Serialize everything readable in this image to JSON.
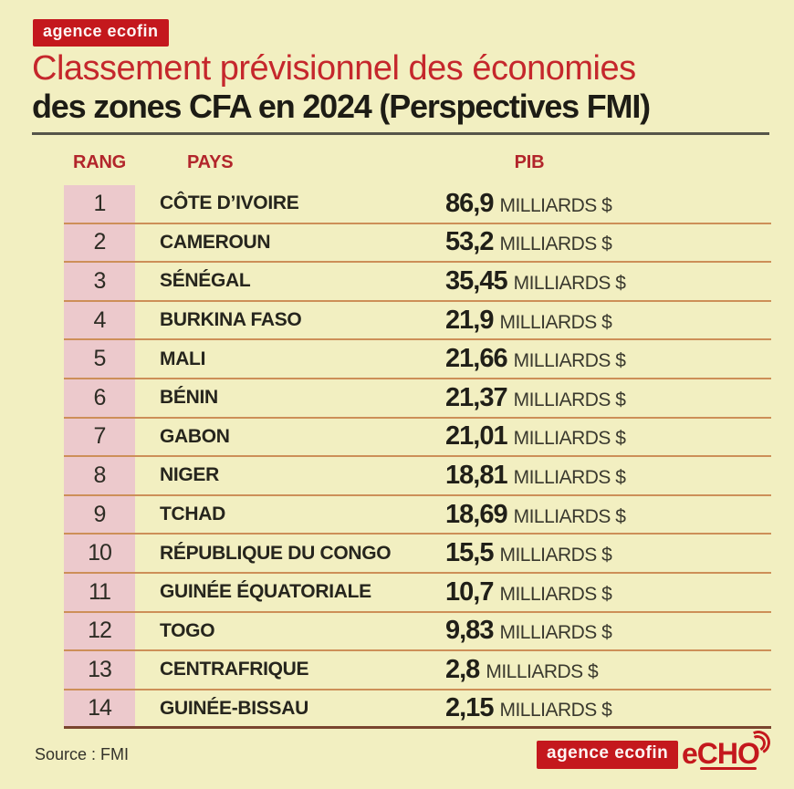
{
  "header": {
    "badge": "agence ecofin",
    "title_line1": "Classement prévisionnel des économies",
    "title_line2": "des zones CFA en 2024 (Perspectives FMI)"
  },
  "table": {
    "headers": {
      "rank": "RANG",
      "country": "PAYS",
      "gdp": "PIB"
    },
    "unit": "MILLIARDS $",
    "rows": [
      {
        "rank": "1",
        "country": "CÔTE D’IVOIRE",
        "value": "86,9"
      },
      {
        "rank": "2",
        "country": "CAMEROUN",
        "value": "53,2"
      },
      {
        "rank": "3",
        "country": "SÉNÉGAL",
        "value": "35,45"
      },
      {
        "rank": "4",
        "country": "BURKINA FASO",
        "value": "21,9"
      },
      {
        "rank": "5",
        "country": "MALI",
        "value": "21,66"
      },
      {
        "rank": "6",
        "country": "BÉNIN",
        "value": "21,37"
      },
      {
        "rank": "7",
        "country": "GABON",
        "value": "21,01"
      },
      {
        "rank": "8",
        "country": "NIGER",
        "value": "18,81"
      },
      {
        "rank": "9",
        "country": "TCHAD",
        "value": "18,69"
      },
      {
        "rank": "10",
        "country": "RÉPUBLIQUE DU CONGO",
        "value": "15,5"
      },
      {
        "rank": "11",
        "country": "GUINÉE ÉQUATORIALE",
        "value": "10,7"
      },
      {
        "rank": "12",
        "country": "TOGO",
        "value": "9,83"
      },
      {
        "rank": "13",
        "country": "CENTRAFRIQUE",
        "value": "2,8"
      },
      {
        "rank": "14",
        "country": "GUINÉE-BISSAU",
        "value": "2,15"
      }
    ]
  },
  "footer": {
    "source": "Source : FMI",
    "badge": "agence ecofin",
    "logo": "eCHO"
  },
  "colors": {
    "background": "#f2efc1",
    "brand_red": "#c4181d",
    "title_red": "#c5272c",
    "pink_stripe": "#ecc9cc",
    "row_separator": "#cd8f58",
    "header_divider": "#56554a",
    "table_bottom_line": "#7a452f",
    "text_dark": "#26251d"
  },
  "chart_data": {
    "type": "table",
    "title": "Classement prévisionnel des économies des zones CFA en 2024 (Perspectives FMI)",
    "columns": [
      "RANG",
      "PAYS",
      "PIB (MILLIARDS $)"
    ],
    "rows": [
      [
        1,
        "CÔTE D’IVOIRE",
        86.9
      ],
      [
        2,
        "CAMEROUN",
        53.2
      ],
      [
        3,
        "SÉNÉGAL",
        35.45
      ],
      [
        4,
        "BURKINA FASO",
        21.9
      ],
      [
        5,
        "MALI",
        21.66
      ],
      [
        6,
        "BÉNIN",
        21.37
      ],
      [
        7,
        "GABON",
        21.01
      ],
      [
        8,
        "NIGER",
        18.81
      ],
      [
        9,
        "TCHAD",
        18.69
      ],
      [
        10,
        "RÉPUBLIQUE DU CONGO",
        15.5
      ],
      [
        11,
        "GUINÉE ÉQUATORIALE",
        10.7
      ],
      [
        12,
        "TOGO",
        9.83
      ],
      [
        13,
        "CENTRAFRIQUE",
        2.8
      ],
      [
        14,
        "GUINÉE-BISSAU",
        2.15
      ]
    ],
    "source": "FMI",
    "layout": "ranked list, rank column highlighted pink, values in billions USD"
  }
}
